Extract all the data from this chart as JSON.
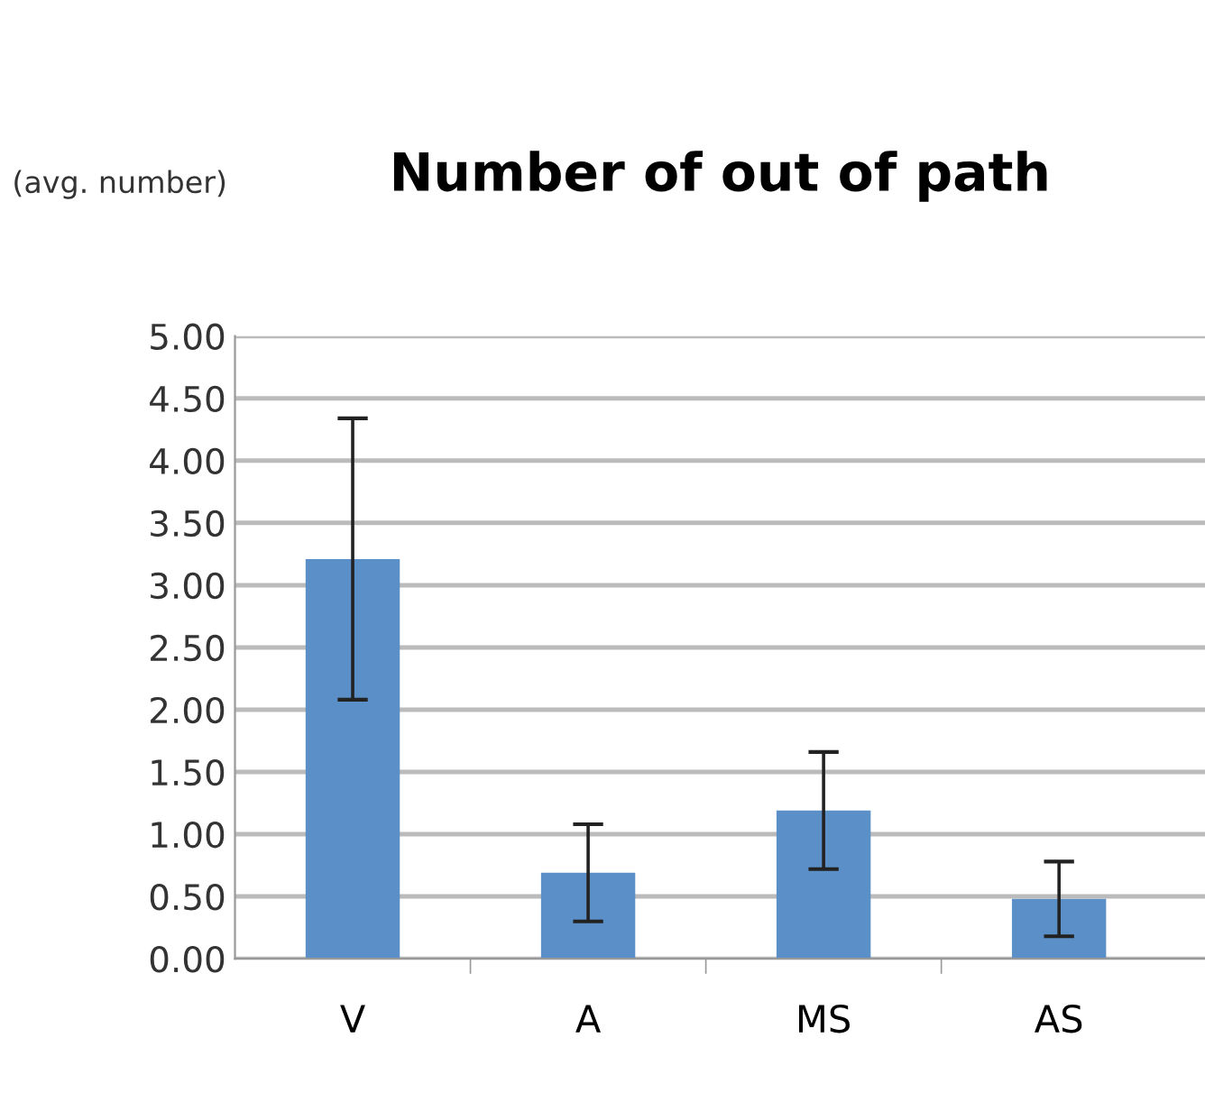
{
  "chart_data": {
    "type": "bar",
    "title": "Number of out of path",
    "ylabel": "(avg. number)",
    "categories": [
      "V",
      "A",
      "MS",
      "AS"
    ],
    "values": [
      3.21,
      0.69,
      1.19,
      0.48
    ],
    "errors": [
      1.13,
      0.39,
      0.47,
      0.3
    ],
    "color": "#5b8fc7",
    "ylim": [
      0,
      5
    ],
    "yticks": [
      {
        "value": 0,
        "label": "0.00"
      },
      {
        "value": 0.5,
        "label": "0.50"
      },
      {
        "value": 1,
        "label": "1.00"
      },
      {
        "value": 1.5,
        "label": "1.50"
      },
      {
        "value": 2,
        "label": "2.00"
      },
      {
        "value": 2.5,
        "label": "2.50"
      },
      {
        "value": 3,
        "label": "3.00"
      },
      {
        "value": 3.5,
        "label": "3.50"
      },
      {
        "value": 4,
        "label": "4.00"
      },
      {
        "value": 4.5,
        "label": "4.50"
      },
      {
        "value": 5,
        "label": "5.00"
      }
    ],
    "grid": "y",
    "legend": false
  }
}
